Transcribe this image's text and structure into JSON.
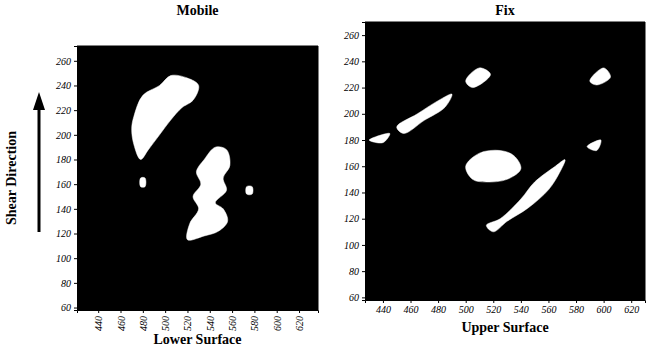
{
  "chart_data": [
    {
      "type": "region",
      "title": "Mobile",
      "xlabel": "Lower Surface",
      "ylabel": "Shear Direction",
      "xlim": [
        421,
        637
      ],
      "ylim": [
        58,
        272
      ],
      "xticks": [
        440,
        460,
        480,
        500,
        520,
        540,
        560,
        580,
        600,
        620
      ],
      "yticks": [
        60,
        80,
        100,
        120,
        140,
        160,
        180,
        200,
        220,
        240,
        260
      ],
      "color": "#ffffff",
      "regions": [
        {
          "x": [
            472,
            480,
            495,
            505,
            520,
            530,
            525,
            515,
            505,
            495,
            485,
            478,
            472,
            470
          ],
          "y": [
            215,
            232,
            240,
            248,
            246,
            240,
            228,
            222,
            212,
            200,
            188,
            180,
            192,
            205
          ]
        },
        {
          "x": [
            520,
            535,
            548,
            556,
            552,
            545,
            555,
            552,
            558,
            555,
            545,
            535,
            528,
            532,
            525,
            530,
            522
          ],
          "y": [
            115,
            118,
            122,
            130,
            140,
            145,
            155,
            165,
            175,
            188,
            190,
            180,
            170,
            160,
            150,
            140,
            128
          ]
        },
        {
          "x": [
            573,
            578,
            578,
            573
          ],
          "y": [
            152,
            152,
            158,
            158
          ]
        },
        {
          "x": [
            478,
            482,
            482,
            478
          ],
          "y": [
            158,
            158,
            165,
            165
          ]
        }
      ]
    },
    {
      "type": "region",
      "title": "Fix",
      "xlabel": "Upper Surface",
      "xlim": [
        427,
        630
      ],
      "ylim": [
        58,
        270
      ],
      "xticks": [
        440,
        460,
        480,
        500,
        520,
        540,
        560,
        580,
        600,
        620
      ],
      "yticks": [
        60,
        80,
        100,
        120,
        140,
        160,
        180,
        200,
        220,
        240,
        260
      ],
      "color": "#ffffff",
      "regions": [
        {
          "x": [
            500,
            510,
            525,
            535,
            540,
            530,
            515,
            505
          ],
          "y": [
            160,
            170,
            172,
            168,
            158,
            150,
            148,
            150
          ]
        },
        {
          "x": [
            515,
            525,
            540,
            550,
            565,
            572,
            568,
            560,
            545,
            530,
            520
          ],
          "y": [
            115,
            120,
            135,
            148,
            160,
            165,
            155,
            142,
            128,
            118,
            110
          ]
        },
        {
          "x": [
            450,
            465,
            480,
            490,
            485,
            470,
            455
          ],
          "y": [
            190,
            200,
            210,
            215,
            205,
            195,
            185
          ]
        },
        {
          "x": [
            500,
            510,
            518,
            505
          ],
          "y": [
            225,
            235,
            230,
            220
          ]
        },
        {
          "x": [
            588,
            598,
            595
          ],
          "y": [
            175,
            180,
            172
          ]
        },
        {
          "x": [
            590,
            600,
            605,
            595
          ],
          "y": [
            225,
            235,
            228,
            222
          ]
        },
        {
          "x": [
            430,
            445,
            440
          ],
          "y": [
            180,
            185,
            178
          ]
        }
      ]
    }
  ]
}
